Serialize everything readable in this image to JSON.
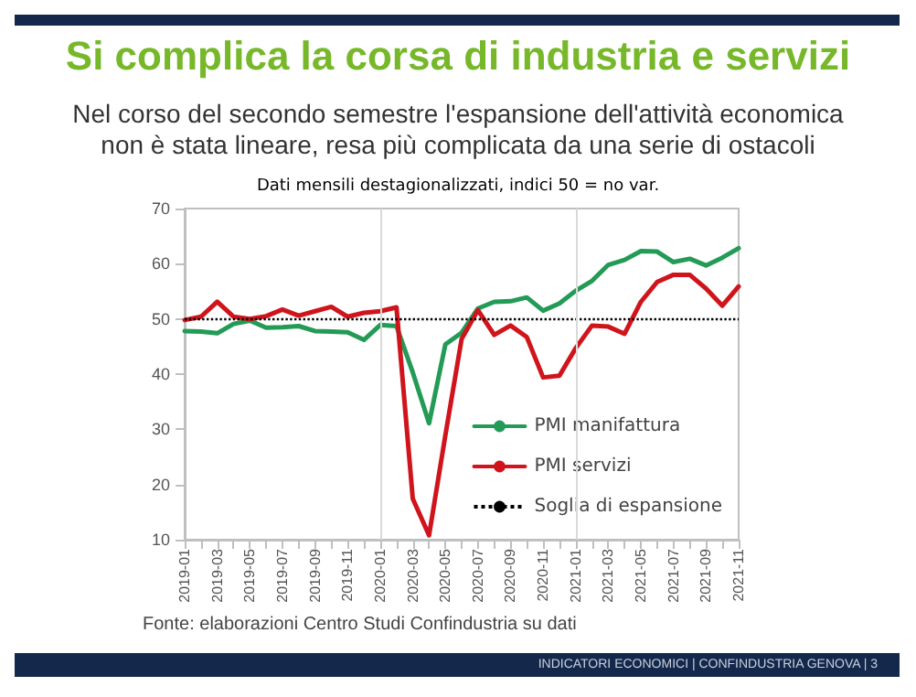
{
  "chart_data": {
    "type": "line",
    "title": "Si complica la corsa di industria e servizi",
    "subtitle": "Nel corso del secondo semestre l'espansione dell'attività economica non è stata lineare, resa più complicata da una serie di ostacoli",
    "annotations": [
      "Dati mensili destagionalizzati, indici 50 = no var.",
      "Fonte: elaborazioni Centro Studi Confindustria su dati",
      "INDICATORI ECONOMICI | CONFINDUSTRIA GENOVA | 3"
    ],
    "categories": [
      "2019-01",
      null,
      "2019-03",
      null,
      "2019-05",
      null,
      "2019-07",
      null,
      "2019-09",
      null,
      "2019-11",
      null,
      "2020-01",
      null,
      "2020-03",
      null,
      "2020-05",
      null,
      "2020-07",
      null,
      "2020-09",
      null,
      "2020-11",
      null,
      "2021-01",
      null,
      "2021-03",
      null,
      "2021-05",
      null,
      "2021-07",
      null,
      "2021-09",
      null,
      "2021-11"
    ],
    "series": [
      {
        "name": "PMI manifattura",
        "color": "#239b56",
        "values": [
          47.8,
          47.7,
          47.4,
          49.1,
          49.7,
          48.4,
          48.5,
          48.7,
          47.8,
          47.7,
          47.6,
          46.2,
          48.9,
          48.7,
          40.3,
          31.1,
          45.4,
          47.5,
          51.9,
          53.1,
          53.2,
          53.9,
          51.5,
          52.8,
          55.1,
          56.9,
          59.8,
          60.7,
          62.3,
          62.2,
          60.3,
          60.9,
          59.7,
          61.1,
          62.8
        ]
      },
      {
        "name": "PMI servizi",
        "color": "#d0141c",
        "values": [
          49.8,
          50.4,
          53.1,
          50.4,
          50.0,
          50.5,
          51.7,
          50.6,
          51.4,
          52.2,
          50.4,
          51.1,
          51.4,
          52.1,
          17.4,
          10.8,
          28.9,
          46.4,
          51.6,
          47.1,
          48.8,
          46.7,
          39.4,
          39.7,
          44.7,
          48.8,
          48.6,
          47.3,
          53.1,
          56.7,
          58.0,
          58.0,
          55.5,
          52.4,
          55.9
        ]
      }
    ],
    "ylim": [
      10,
      70
    ],
    "yticks": [
      10,
      20,
      30,
      40,
      50,
      60,
      70
    ],
    "grid": false,
    "legend": "bottom right",
    "marker": "none",
    "line_style": "solid",
    "ref_lines": [
      {
        "axis": "y",
        "value": 50,
        "label": "Soglia di espansione",
        "color": "#000000",
        "line_style": "dotted"
      },
      {
        "axis": "x",
        "value": "2020-01",
        "color": "#d9d9d9",
        "line_style": "solid"
      },
      {
        "axis": "x",
        "value": "2021-01",
        "color": "#d9d9d9",
        "line_style": "solid"
      }
    ]
  }
}
